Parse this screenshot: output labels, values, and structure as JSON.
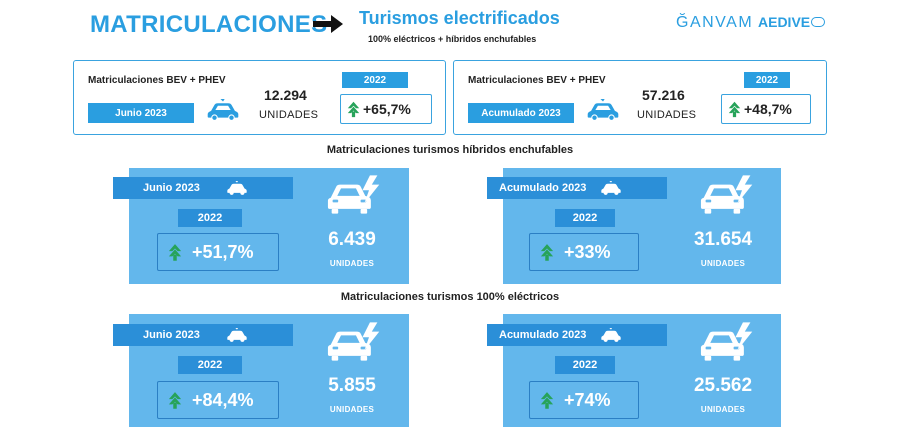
{
  "header": {
    "title": "MATRICULACIONES",
    "subtitle": "Turismos electrificados",
    "subtitle_note": "100% eléctricos + híbridos enchufables",
    "logo_ganvam": "ĞANVAM",
    "logo_aedive": "AEDIVE"
  },
  "summary": [
    {
      "label": "Matriculaciones BEV + PHEV",
      "period": "Junio 2023",
      "value": "12.294",
      "units": "UNIDADES",
      "year": "2022",
      "change": "+65,7%"
    },
    {
      "label": "Matriculaciones BEV + PHEV",
      "period": "Acumulado 2023",
      "value": "57.216",
      "units": "UNIDADES",
      "year": "2022",
      "change": "+48,7%"
    }
  ],
  "phev": {
    "title": "Matriculaciones turismos híbridos enchufables",
    "panels": [
      {
        "period": "Junio 2023",
        "year": "2022",
        "change": "+51,7%",
        "value": "6.439",
        "units": "UNIDADES"
      },
      {
        "period": "Acumulado 2023",
        "year": "2022",
        "change": "+33%",
        "value": "31.654",
        "units": "UNIDADES"
      }
    ]
  },
  "bev": {
    "title": "Matriculaciones turismos 100% eléctricos",
    "panels": [
      {
        "period": "Junio 2023",
        "year": "2022",
        "change": "+84,4%",
        "value": "5.855",
        "units": "UNIDADES"
      },
      {
        "period": "Acumulado 2023",
        "year": "2022",
        "change": "+74%",
        "value": "25.562",
        "units": "UNIDADES"
      }
    ]
  },
  "colors": {
    "accent": "#2a9ee0",
    "panel": "#63b7ec",
    "panel_dark": "#2b8fd8",
    "up_arrow": "#27a35a"
  },
  "icons": [
    "arrow-right-icon",
    "electric-car-icon",
    "up-arrow-icon"
  ]
}
